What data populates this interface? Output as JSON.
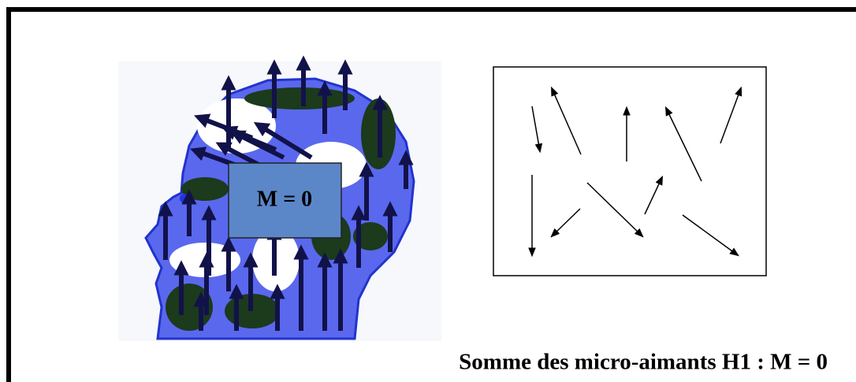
{
  "diagram": {
    "box_label": "M = 0",
    "caption": "Somme des micro-aimants H1 : M = 0"
  }
}
